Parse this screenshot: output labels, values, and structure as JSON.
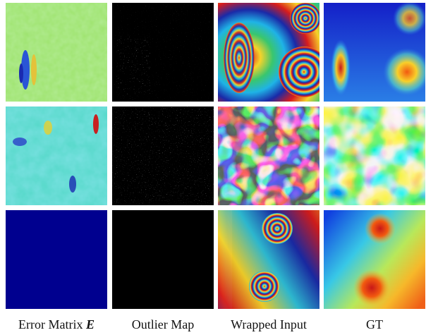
{
  "figure": {
    "columns": [
      {
        "label": "Error Matrix",
        "symbol": "E"
      },
      {
        "label": "Outlier Map"
      },
      {
        "label": "Wrapped Input"
      },
      {
        "label": "GT"
      }
    ],
    "rows": 3,
    "colormap": "jet"
  }
}
